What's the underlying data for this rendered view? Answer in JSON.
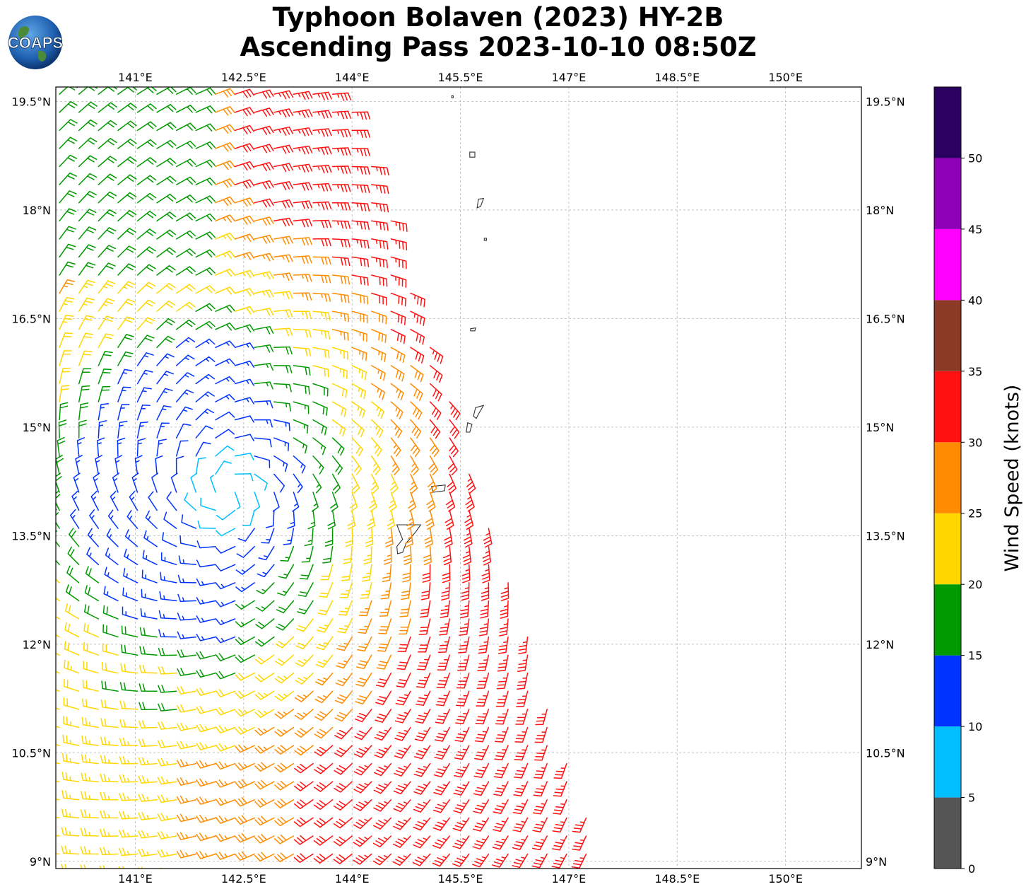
{
  "title": {
    "line1": "Typhoon Bolaven (2023) HY-2B",
    "line2": "Ascending Pass 2023-10-10 08:50Z"
  },
  "logo": {
    "text": "COAPS"
  },
  "map": {
    "lon_range": [
      139.9,
      151.05
    ],
    "lat_range": [
      8.9,
      19.7
    ],
    "lon_ticks": [
      "141°E",
      "142.5°E",
      "144°E",
      "145.5°E",
      "147°E",
      "148.5°E",
      "150°E"
    ],
    "lat_ticks": [
      "19.5°N",
      "18°N",
      "16.5°N",
      "15°N",
      "13.5°N",
      "12°N",
      "10.5°N",
      "9°N"
    ],
    "gridlines": true,
    "center_of_circulation": [
      142.3,
      14.1
    ],
    "swath_east_edge_note": "",
    "land_outline_color": "#333333"
  },
  "colorbar": {
    "label": "Wind Speed (knots)",
    "ticks": [
      "0",
      "5",
      "10",
      "15",
      "20",
      "25",
      "30",
      "35",
      "40",
      "45",
      "50"
    ],
    "colors": [
      "#555555",
      "#00bfff",
      "#0033ff",
      "#009900",
      "#ffd700",
      "#ff8c00",
      "#ff1111",
      "#8b3a26",
      "#ff00ff",
      "#8e00b8",
      "#2a0060"
    ],
    "bins_knots": [
      0,
      5,
      10,
      15,
      20,
      25,
      30,
      35,
      40,
      45,
      50,
      55
    ]
  }
}
